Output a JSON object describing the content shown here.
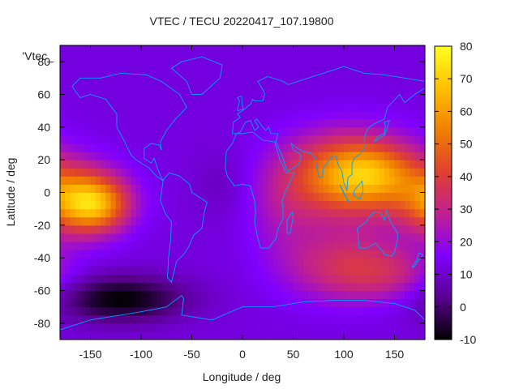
{
  "chart_data": {
    "type": "heatmap",
    "title": "VTEC / TECU 20220417_107.19800",
    "xlabel": "Longitude / deg",
    "ylabel": "Latitude / deg",
    "series_label": "'Vtec_",
    "xlim": [
      -180,
      180
    ],
    "ylim": [
      -90,
      90
    ],
    "x_ticks": [
      -150,
      -100,
      -50,
      0,
      50,
      100,
      150
    ],
    "y_ticks": [
      -80,
      -60,
      -40,
      -20,
      0,
      20,
      40,
      60,
      80
    ],
    "colorbar": {
      "min": -10,
      "max": 80,
      "ticks": [
        -10,
        0,
        10,
        20,
        30,
        40,
        50,
        60,
        70,
        80
      ],
      "colors": [
        "#000000",
        "#5a0090",
        "#8000ff",
        "#c02090",
        "#e04030",
        "#f08000",
        "#ffc000",
        "#ffff20"
      ]
    },
    "field": {
      "background_vtec": 12,
      "blobs": [
        {
          "lon": 105,
          "lat": 10,
          "vtec": 45,
          "lon_sigma": 45,
          "lat_sigma": 18
        },
        {
          "lon": 130,
          "lat": 12,
          "vtec": 18,
          "lon_sigma": 30,
          "lat_sigma": 12
        },
        {
          "lon": -160,
          "lat": -5,
          "vtec": 48,
          "lon_sigma": 30,
          "lat_sigma": 14
        },
        {
          "lon": -140,
          "lat": -8,
          "vtec": 18,
          "lon_sigma": 20,
          "lat_sigma": 10
        },
        {
          "lon": 100,
          "lat": -45,
          "vtec": 22,
          "lon_sigma": 40,
          "lat_sigma": 15
        },
        {
          "lon": 150,
          "lat": -50,
          "vtec": 12,
          "lon_sigma": 30,
          "lat_sigma": 12
        },
        {
          "lon": 40,
          "lat": -15,
          "vtec": 8,
          "lon_sigma": 25,
          "lat_sigma": 20
        },
        {
          "lon": -120,
          "lat": -65,
          "vtec": -22,
          "lon_sigma": 45,
          "lat_sigma": 10
        },
        {
          "lon": -20,
          "lat": 5,
          "vtec": -4,
          "lon_sigma": 20,
          "lat_sigma": 15
        }
      ]
    },
    "coastline_color": "#00a0ff"
  }
}
